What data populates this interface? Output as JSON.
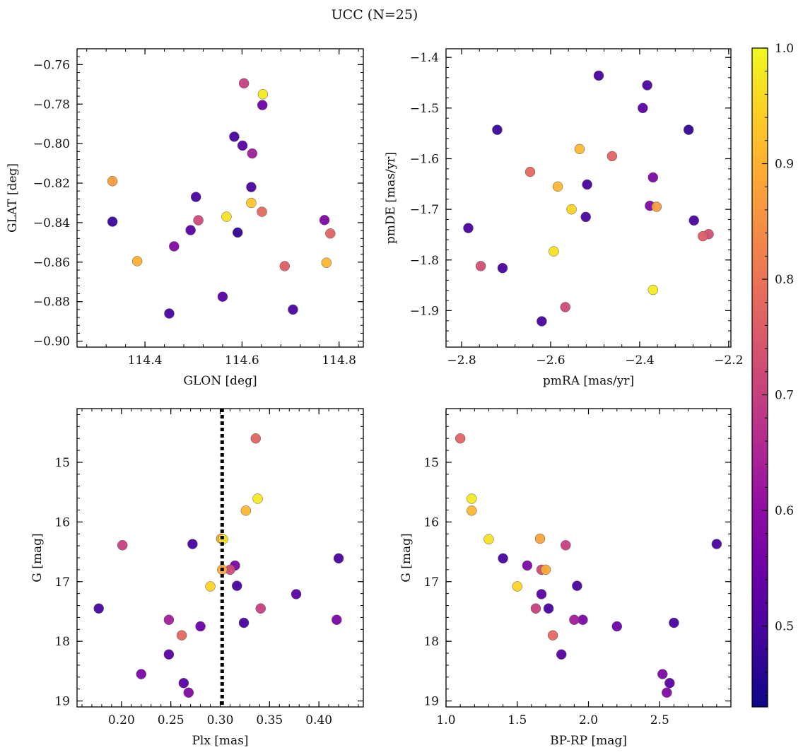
{
  "suptitle": "UCC (N=25)",
  "chart_data": [
    {
      "type": "scatter",
      "xlabel": "GLON [deg]",
      "ylabel": "GLAT [deg]",
      "xlim": [
        114.26,
        114.85
      ],
      "ylim": [
        -0.903,
        -0.752
      ],
      "xticks": [
        114.4,
        114.6,
        114.8
      ],
      "xtick_labels": [
        "114.4",
        "114.6",
        "114.8"
      ],
      "yticks": [
        -0.76,
        -0.78,
        -0.8,
        -0.82,
        -0.84,
        -0.86,
        -0.88,
        -0.9
      ],
      "ytick_labels": [
        "−0.76",
        "−0.78",
        "−0.80",
        "−0.82",
        "−0.84",
        "−0.86",
        "−0.88",
        "−0.90"
      ],
      "points": [
        {
          "x": 114.333,
          "y": -0.819,
          "c": 0.87
        },
        {
          "x": 114.333,
          "y": -0.8395,
          "c": 0.48
        },
        {
          "x": 114.384,
          "y": -0.8595,
          "c": 0.9
        },
        {
          "x": 114.45,
          "y": -0.886,
          "c": 0.5
        },
        {
          "x": 114.46,
          "y": -0.852,
          "c": 0.58
        },
        {
          "x": 114.494,
          "y": -0.8438,
          "c": 0.52
        },
        {
          "x": 114.505,
          "y": -0.827,
          "c": 0.5
        },
        {
          "x": 114.51,
          "y": -0.8388,
          "c": 0.72
        },
        {
          "x": 114.56,
          "y": -0.8775,
          "c": 0.52
        },
        {
          "x": 114.568,
          "y": -0.837,
          "c": 0.97
        },
        {
          "x": 114.584,
          "y": -0.7965,
          "c": 0.5
        },
        {
          "x": 114.591,
          "y": -0.845,
          "c": 0.47
        },
        {
          "x": 114.601,
          "y": -0.801,
          "c": 0.52
        },
        {
          "x": 114.604,
          "y": -0.7695,
          "c": 0.7
        },
        {
          "x": 114.619,
          "y": -0.822,
          "c": 0.5
        },
        {
          "x": 114.619,
          "y": -0.83,
          "c": 0.93
        },
        {
          "x": 114.621,
          "y": -0.805,
          "c": 0.63
        },
        {
          "x": 114.641,
          "y": -0.8345,
          "c": 0.78
        },
        {
          "x": 114.642,
          "y": -0.7805,
          "c": 0.55
        },
        {
          "x": 114.643,
          "y": -0.775,
          "c": 0.98
        },
        {
          "x": 114.688,
          "y": -0.862,
          "c": 0.76
        },
        {
          "x": 114.705,
          "y": -0.884,
          "c": 0.5
        },
        {
          "x": 114.77,
          "y": -0.8387,
          "c": 0.57
        },
        {
          "x": 114.774,
          "y": -0.8603,
          "c": 0.91
        },
        {
          "x": 114.782,
          "y": -0.8455,
          "c": 0.77
        }
      ]
    },
    {
      "type": "scatter",
      "xlabel": "pmRA [mas/yr]",
      "ylabel": "pmDE [mas/yr]",
      "xlim": [
        -2.835,
        -2.195
      ],
      "ylim": [
        -1.972,
        -1.383
      ],
      "xticks": [
        -2.8,
        -2.6,
        -2.4,
        -2.2
      ],
      "xtick_labels": [
        "−2.8",
        "−2.6",
        "−2.4",
        "−2.2"
      ],
      "yticks": [
        -1.4,
        -1.5,
        -1.6,
        -1.7,
        -1.8,
        -1.9
      ],
      "ytick_labels": [
        "−1.4",
        "−1.5",
        "−1.6",
        "−1.7",
        "−1.8",
        "−1.9"
      ],
      "points": [
        {
          "x": -2.785,
          "y": -1.737,
          "c": 0.5
        },
        {
          "x": -2.757,
          "y": -1.812,
          "c": 0.73
        },
        {
          "x": -2.72,
          "y": -1.543,
          "c": 0.48
        },
        {
          "x": -2.708,
          "y": -1.816,
          "c": 0.5
        },
        {
          "x": -2.646,
          "y": -1.626,
          "c": 0.78
        },
        {
          "x": -2.62,
          "y": -1.921,
          "c": 0.5
        },
        {
          "x": -2.593,
          "y": -1.783,
          "c": 0.97
        },
        {
          "x": -2.584,
          "y": -1.655,
          "c": 0.91
        },
        {
          "x": -2.567,
          "y": -1.893,
          "c": 0.72
        },
        {
          "x": -2.553,
          "y": -1.7,
          "c": 0.95
        },
        {
          "x": -2.535,
          "y": -1.581,
          "c": 0.91
        },
        {
          "x": -2.521,
          "y": -1.715,
          "c": 0.5
        },
        {
          "x": -2.518,
          "y": -1.651,
          "c": 0.5
        },
        {
          "x": -2.462,
          "y": -1.595,
          "c": 0.77
        },
        {
          "x": -2.492,
          "y": -1.436,
          "c": 0.5
        },
        {
          "x": -2.393,
          "y": -1.5,
          "c": 0.52
        },
        {
          "x": -2.383,
          "y": -1.455,
          "c": 0.5
        },
        {
          "x": -2.377,
          "y": -1.693,
          "c": 0.58
        },
        {
          "x": -2.37,
          "y": -1.637,
          "c": 0.57
        },
        {
          "x": -2.362,
          "y": -1.695,
          "c": 0.87
        },
        {
          "x": -2.37,
          "y": -1.859,
          "c": 0.98
        },
        {
          "x": -2.29,
          "y": -1.543,
          "c": 0.47
        },
        {
          "x": -2.278,
          "y": -1.722,
          "c": 0.5
        },
        {
          "x": -2.258,
          "y": -1.753,
          "c": 0.76
        },
        {
          "x": -2.245,
          "y": -1.749,
          "c": 0.73
        }
      ]
    },
    {
      "type": "scatter",
      "xlabel": "Plx [mas]",
      "ylabel": "G [mag]",
      "xlim": [
        0.155,
        0.445
      ],
      "ylim": [
        19.1,
        14.1
      ],
      "xticks": [
        0.2,
        0.25,
        0.3,
        0.35,
        0.4
      ],
      "xtick_labels": [
        "0.20",
        "0.25",
        "0.30",
        "0.35",
        "0.40"
      ],
      "yticks": [
        15,
        16,
        17,
        18,
        19
      ],
      "ytick_labels": [
        "15",
        "16",
        "17",
        "18",
        "19"
      ],
      "vline": 0.302,
      "points": [
        {
          "x": 0.177,
          "y": 17.45,
          "c": 0.5
        },
        {
          "x": 0.201,
          "y": 16.39,
          "c": 0.7
        },
        {
          "x": 0.22,
          "y": 18.55,
          "c": 0.57
        },
        {
          "x": 0.248,
          "y": 17.64,
          "c": 0.63
        },
        {
          "x": 0.248,
          "y": 18.22,
          "c": 0.52
        },
        {
          "x": 0.261,
          "y": 17.9,
          "c": 0.78
        },
        {
          "x": 0.263,
          "y": 18.7,
          "c": 0.52
        },
        {
          "x": 0.268,
          "y": 18.86,
          "c": 0.58
        },
        {
          "x": 0.272,
          "y": 16.37,
          "c": 0.5
        },
        {
          "x": 0.28,
          "y": 17.75,
          "c": 0.55
        },
        {
          "x": 0.29,
          "y": 17.08,
          "c": 0.95
        },
        {
          "x": 0.303,
          "y": 16.29,
          "c": 0.97
        },
        {
          "x": 0.301,
          "y": 16.28,
          "c": 0.88
        },
        {
          "x": 0.302,
          "y": 16.8,
          "c": 0.89
        },
        {
          "x": 0.31,
          "y": 16.8,
          "c": 0.72
        },
        {
          "x": 0.315,
          "y": 16.73,
          "c": 0.57
        },
        {
          "x": 0.317,
          "y": 17.07,
          "c": 0.5
        },
        {
          "x": 0.324,
          "y": 17.69,
          "c": 0.5
        },
        {
          "x": 0.326,
          "y": 15.81,
          "c": 0.91
        },
        {
          "x": 0.336,
          "y": 14.6,
          "c": 0.77
        },
        {
          "x": 0.338,
          "y": 15.61,
          "c": 0.98
        },
        {
          "x": 0.341,
          "y": 17.45,
          "c": 0.7
        },
        {
          "x": 0.377,
          "y": 17.21,
          "c": 0.52
        },
        {
          "x": 0.418,
          "y": 17.64,
          "c": 0.57
        },
        {
          "x": 0.42,
          "y": 16.61,
          "c": 0.5
        }
      ]
    },
    {
      "type": "scatter",
      "xlabel": "BP-RP [mag]",
      "ylabel": "G [mag]",
      "xlim": [
        1.0,
        3.0
      ],
      "ylim": [
        19.1,
        14.1
      ],
      "xticks": [
        1.0,
        1.5,
        2.0,
        2.5
      ],
      "xtick_labels": [
        "1.0",
        "1.5",
        "2.0",
        "2.5"
      ],
      "yticks": [
        15,
        16,
        17,
        18,
        19
      ],
      "ytick_labels": [
        "15",
        "16",
        "17",
        "18",
        "19"
      ],
      "points": [
        {
          "x": 1.1,
          "y": 14.6,
          "c": 0.77
        },
        {
          "x": 1.18,
          "y": 15.61,
          "c": 0.98
        },
        {
          "x": 1.18,
          "y": 15.81,
          "c": 0.91
        },
        {
          "x": 1.3,
          "y": 16.29,
          "c": 0.97
        },
        {
          "x": 1.4,
          "y": 16.61,
          "c": 0.5
        },
        {
          "x": 1.5,
          "y": 17.08,
          "c": 0.95
        },
        {
          "x": 1.57,
          "y": 16.73,
          "c": 0.57
        },
        {
          "x": 1.63,
          "y": 17.45,
          "c": 0.7
        },
        {
          "x": 1.66,
          "y": 16.28,
          "c": 0.88
        },
        {
          "x": 1.67,
          "y": 16.8,
          "c": 0.72
        },
        {
          "x": 1.67,
          "y": 17.21,
          "c": 0.52
        },
        {
          "x": 1.7,
          "y": 16.8,
          "c": 0.89
        },
        {
          "x": 1.72,
          "y": 17.45,
          "c": 0.5
        },
        {
          "x": 1.75,
          "y": 17.9,
          "c": 0.78
        },
        {
          "x": 1.81,
          "y": 18.22,
          "c": 0.52
        },
        {
          "x": 1.84,
          "y": 16.39,
          "c": 0.7
        },
        {
          "x": 1.9,
          "y": 17.64,
          "c": 0.63
        },
        {
          "x": 1.92,
          "y": 17.07,
          "c": 0.5
        },
        {
          "x": 1.96,
          "y": 17.64,
          "c": 0.57
        },
        {
          "x": 2.2,
          "y": 17.75,
          "c": 0.55
        },
        {
          "x": 2.52,
          "y": 18.55,
          "c": 0.57
        },
        {
          "x": 2.55,
          "y": 18.86,
          "c": 0.58
        },
        {
          "x": 2.57,
          "y": 18.7,
          "c": 0.52
        },
        {
          "x": 2.6,
          "y": 17.69,
          "c": 0.5
        },
        {
          "x": 2.9,
          "y": 16.37,
          "c": 0.5
        }
      ]
    }
  ],
  "colorbar": {
    "colormap": "plasma",
    "range": [
      0.43,
      1.0
    ],
    "ticks": [
      0.5,
      0.6,
      0.7,
      0.8,
      0.9,
      1.0
    ],
    "tick_labels": [
      "0.5",
      "0.6",
      "0.7",
      "0.8",
      "0.9",
      "1.0"
    ]
  }
}
